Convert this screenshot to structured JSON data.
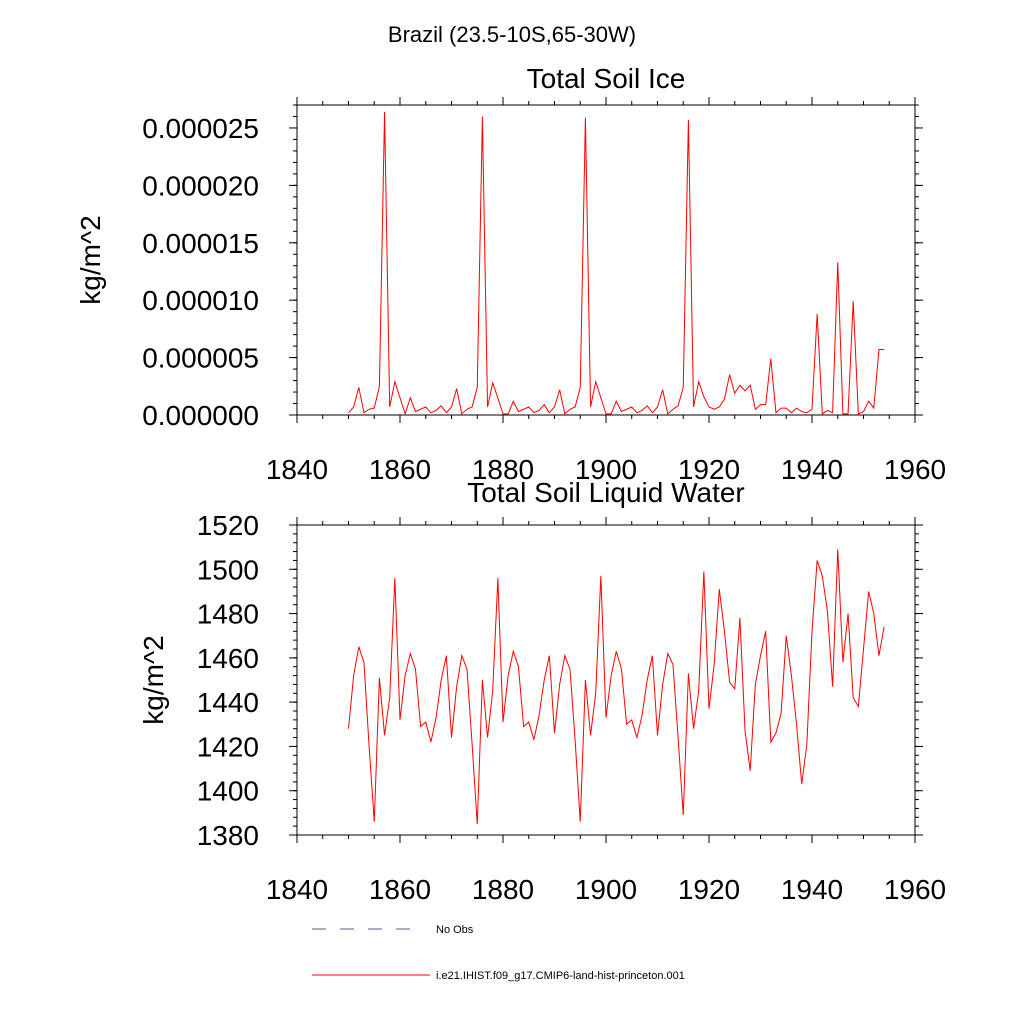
{
  "page": {
    "suptitle": "Brazil (23.5-10S,65-30W)"
  },
  "legend": [
    {
      "label": "No Obs",
      "color": "#5a5a8a",
      "style": "dashed"
    },
    {
      "label": "i.e21.IHIST.f09_g17.CMIP6-land-hist-princeton.001",
      "color": "#ff0000",
      "style": "solid"
    }
  ],
  "chart_data": [
    {
      "type": "line",
      "title": "Total Soil Ice",
      "xlabel": "",
      "ylabel": "kg/m^2",
      "xlim": [
        1840,
        1960
      ],
      "ylim": [
        0,
        2.7e-05
      ],
      "xticks": [
        1840,
        1860,
        1880,
        1900,
        1920,
        1940,
        1960
      ],
      "xticklabels": [
        "1840",
        "1860",
        "1880",
        "1900",
        "1920",
        "1940",
        "1960"
      ],
      "yticks": [
        0,
        5e-06,
        1e-05,
        1.5e-05,
        2e-05,
        2.5e-05
      ],
      "yticklabels": [
        "0.000000",
        "0.000005",
        "0.000010",
        "0.000015",
        "0.000020",
        "0.000025"
      ],
      "grid": false,
      "series": [
        {
          "color": "#ff0000",
          "x": [
            1850,
            1851,
            1852,
            1853,
            1854,
            1855,
            1856,
            1857,
            1858,
            1859,
            1860,
            1861,
            1862,
            1863,
            1864,
            1865,
            1866,
            1867,
            1868,
            1869,
            1870,
            1871,
            1872,
            1873,
            1874,
            1875,
            1876,
            1877,
            1878,
            1879,
            1880,
            1881,
            1882,
            1883,
            1884,
            1885,
            1886,
            1887,
            1888,
            1889,
            1890,
            1891,
            1892,
            1893,
            1894,
            1895,
            1896,
            1897,
            1898,
            1899,
            1900,
            1901,
            1902,
            1903,
            1904,
            1905,
            1906,
            1907,
            1908,
            1909,
            1910,
            1911,
            1912,
            1913,
            1914,
            1915,
            1916,
            1917,
            1918,
            1919,
            1920,
            1921,
            1922,
            1923,
            1924,
            1925,
            1926,
            1927,
            1928,
            1929,
            1930,
            1931,
            1932,
            1933,
            1934,
            1935,
            1936,
            1937,
            1938,
            1939,
            1940,
            1941,
            1942,
            1943,
            1944,
            1945,
            1946,
            1947,
            1948,
            1949,
            1950,
            1951,
            1952,
            1953,
            1954
          ],
          "y": [
            2e-07,
            7e-07,
            2.4e-06,
            2e-07,
            5e-07,
            6e-07,
            2.5e-06,
            2.64e-05,
            7e-07,
            2.9e-06,
            1.5e-06,
            1e-07,
            1.5e-06,
            3e-07,
            5e-07,
            7e-07,
            2e-07,
            4e-07,
            8e-07,
            2e-07,
            7e-07,
            2.3e-06,
            1e-07,
            5e-07,
            7e-07,
            2.4e-06,
            2.6e-05,
            7e-07,
            2.8e-06,
            1.5e-06,
            1e-07,
            1e-07,
            1.2e-06,
            3e-07,
            5e-07,
            7e-07,
            2e-07,
            4e-07,
            9e-07,
            2e-07,
            7e-07,
            2.2e-06,
            1e-07,
            5e-07,
            7e-07,
            2.4e-06,
            2.59e-05,
            7e-07,
            2.9e-06,
            1.5e-06,
            1e-07,
            1e-07,
            1.2e-06,
            3e-07,
            5e-07,
            7e-07,
            2e-07,
            4e-07,
            8e-07,
            2e-07,
            7e-07,
            2.2e-06,
            1e-07,
            5e-07,
            8e-07,
            2.4e-06,
            2.57e-05,
            7e-07,
            2.9e-06,
            1.6e-06,
            7e-07,
            5e-07,
            7e-07,
            1.4e-06,
            3.5e-06,
            1.9e-06,
            2.6e-06,
            2.1e-06,
            2.6e-06,
            5e-07,
            9e-07,
            9e-07,
            4.9e-06,
            2e-07,
            6e-07,
            6e-07,
            2e-07,
            6e-07,
            3e-07,
            2e-07,
            5e-07,
            8.8e-06,
            1e-07,
            4e-07,
            2e-07,
            1.33e-05,
            1e-07,
            1e-07,
            9.9e-06,
            1e-07,
            3e-07,
            1.2e-06,
            6e-07,
            5.7e-06,
            5.7e-06
          ]
        }
      ]
    },
    {
      "type": "line",
      "title": "Total Soil Liquid Water",
      "xlabel": "",
      "ylabel": "kg/m^2",
      "xlim": [
        1840,
        1960
      ],
      "ylim": [
        1380,
        1520
      ],
      "xticks": [
        1840,
        1860,
        1880,
        1900,
        1920,
        1940,
        1960
      ],
      "xticklabels": [
        "1840",
        "1860",
        "1880",
        "1900",
        "1920",
        "1940",
        "1960"
      ],
      "yticks": [
        1380,
        1400,
        1420,
        1440,
        1460,
        1480,
        1500,
        1520
      ],
      "yticklabels": [
        "1380",
        "1400",
        "1420",
        "1440",
        "1460",
        "1480",
        "1500",
        "1520"
      ],
      "grid": false,
      "series": [
        {
          "color": "#ff0000",
          "x": [
            1850,
            1851,
            1852,
            1853,
            1854,
            1855,
            1856,
            1857,
            1858,
            1859,
            1860,
            1861,
            1862,
            1863,
            1864,
            1865,
            1866,
            1867,
            1868,
            1869,
            1870,
            1871,
            1872,
            1873,
            1874,
            1875,
            1876,
            1877,
            1878,
            1879,
            1880,
            1881,
            1882,
            1883,
            1884,
            1885,
            1886,
            1887,
            1888,
            1889,
            1890,
            1891,
            1892,
            1893,
            1894,
            1895,
            1896,
            1897,
            1898,
            1899,
            1900,
            1901,
            1902,
            1903,
            1904,
            1905,
            1906,
            1907,
            1908,
            1909,
            1910,
            1911,
            1912,
            1913,
            1914,
            1915,
            1916,
            1917,
            1918,
            1919,
            1920,
            1921,
            1922,
            1923,
            1924,
            1925,
            1926,
            1927,
            1928,
            1929,
            1930,
            1931,
            1932,
            1933,
            1934,
            1935,
            1936,
            1937,
            1938,
            1939,
            1940,
            1941,
            1942,
            1943,
            1944,
            1945,
            1946,
            1947,
            1948,
            1949,
            1950,
            1951,
            1952,
            1953,
            1954
          ],
          "y": [
            1428,
            1452,
            1465,
            1458,
            1420,
            1386,
            1451,
            1425,
            1442,
            1496,
            1432,
            1452,
            1462,
            1455,
            1429,
            1431,
            1422,
            1433,
            1450,
            1461,
            1424,
            1447,
            1461,
            1455,
            1421,
            1385,
            1450,
            1424,
            1445,
            1496,
            1431,
            1452,
            1463,
            1456,
            1429,
            1431,
            1423,
            1434,
            1450,
            1461,
            1426,
            1448,
            1461,
            1455,
            1423,
            1386,
            1450,
            1425,
            1444,
            1497,
            1433,
            1452,
            1463,
            1455,
            1430,
            1432,
            1424,
            1434,
            1450,
            1461,
            1425,
            1448,
            1462,
            1457,
            1424,
            1389,
            1453,
            1428,
            1445,
            1499,
            1437,
            1457,
            1491,
            1472,
            1449,
            1446,
            1478,
            1427,
            1409,
            1448,
            1461,
            1472,
            1422,
            1426,
            1435,
            1470,
            1452,
            1430,
            1403,
            1421,
            1472,
            1504,
            1497,
            1481,
            1447,
            1509,
            1458,
            1480,
            1442,
            1438,
            1464,
            1490,
            1480,
            1461,
            1474
          ]
        }
      ]
    }
  ]
}
